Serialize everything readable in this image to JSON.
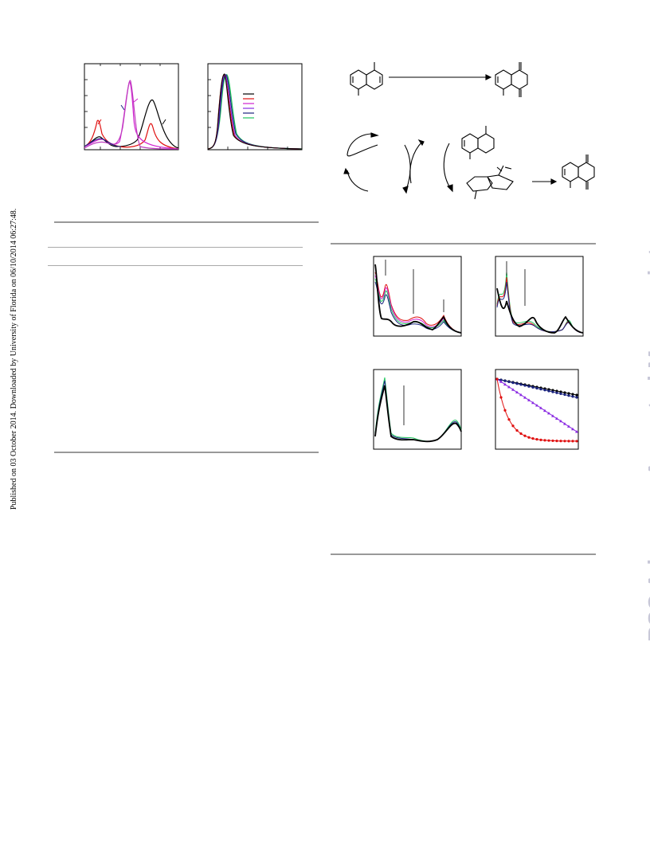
{
  "sidebar_left": {
    "text": "Published on 03 October 2014. Downloaded by University of Florida on 06/10/2014 06:27:48."
  },
  "watermark": {
    "text": "RSC Advances Accepted Manuscript",
    "color": "#c8c8d8"
  },
  "colors": {
    "black": "#000000",
    "red": "#e01010",
    "magenta": "#d020d0",
    "purple": "#8a2be2",
    "navy": "#1a237e",
    "green": "#22c55e",
    "rule": "#999999"
  },
  "figures": {
    "fig_a": {
      "icon": "absorption-spectra-plot"
    },
    "fig_b": {
      "icon": "normalized-emission-plot",
      "legend_series_count": 6
    },
    "scheme": {
      "icon": "reaction-scheme"
    },
    "uv_1": {
      "icon": "uv-vis-time-evolution"
    },
    "uv_2": {
      "icon": "uv-vis-time-evolution"
    },
    "uv_3": {
      "icon": "uv-vis-time-evolution"
    },
    "kinetics": {
      "icon": "decay-kinetics-plot"
    }
  }
}
